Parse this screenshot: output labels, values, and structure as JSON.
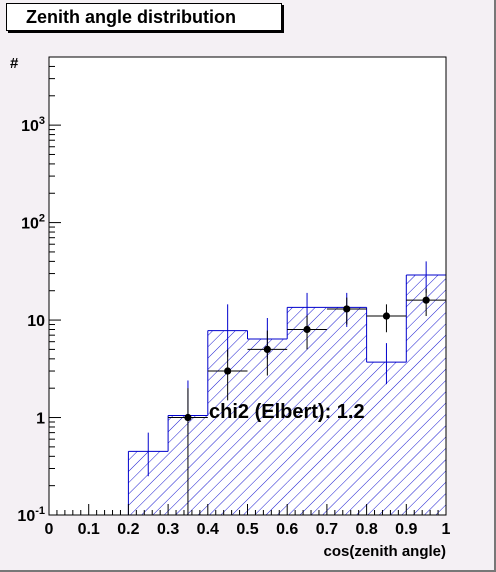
{
  "colors": {
    "background": "#f4f0f4",
    "frame": "#ffffff",
    "mc_histogram": "#0000cc",
    "data_points": "#000000"
  },
  "chart_data": {
    "type": "bar",
    "title": "Zenith angle distribution",
    "xlabel": "cos(zenith angle)",
    "ylabel": "#",
    "xlim": [
      0,
      1
    ],
    "ylim": [
      0.1,
      5000
    ],
    "y_scale": "log",
    "x_ticks": [
      "0",
      "0.1",
      "0.2",
      "0.3",
      "0.4",
      "0.5",
      "0.6",
      "0.7",
      "0.8",
      "0.9",
      "1"
    ],
    "y_ticks": [
      {
        "value": 0.1,
        "base": "10",
        "exp": "-1"
      },
      {
        "value": 1,
        "base": "1",
        "exp": ""
      },
      {
        "value": 10,
        "base": "10",
        "exp": ""
      },
      {
        "value": 100,
        "base": "10",
        "exp": "2"
      },
      {
        "value": 1000,
        "base": "10",
        "exp": "3"
      }
    ],
    "bin_edges": [
      0,
      0.1,
      0.2,
      0.3,
      0.4,
      0.5,
      0.6,
      0.7,
      0.8,
      0.9,
      1.0
    ],
    "series": [
      {
        "style": "hatched histogram with error bars",
        "values": [
          0.1,
          0.1,
          0.45,
          1.05,
          7.8,
          6.4,
          13.5,
          13.5,
          3.7,
          29
        ],
        "errors_low": [
          0,
          0,
          0.25,
          0.7,
          4.2,
          4.0,
          8.5,
          8.5,
          2.2,
          19
        ],
        "errors_high": [
          0,
          0,
          0.7,
          2.4,
          14.5,
          10.5,
          19,
          19,
          5.8,
          40
        ]
      },
      {
        "style": "points with error bars",
        "x": [
          0.35,
          0.45,
          0.55,
          0.65,
          0.75,
          0.85,
          0.95
        ],
        "values": [
          1,
          3,
          5,
          8,
          13,
          11,
          16
        ],
        "errors_low": [
          0.1,
          1.5,
          2.7,
          5,
          9,
          7.5,
          11
        ],
        "errors_high": [
          2.0,
          5,
          7.8,
          11.2,
          17,
          14.5,
          21
        ]
      }
    ],
    "annotation": "chi2 (Elbert): 1.2",
    "grid": false,
    "legend": "none"
  }
}
